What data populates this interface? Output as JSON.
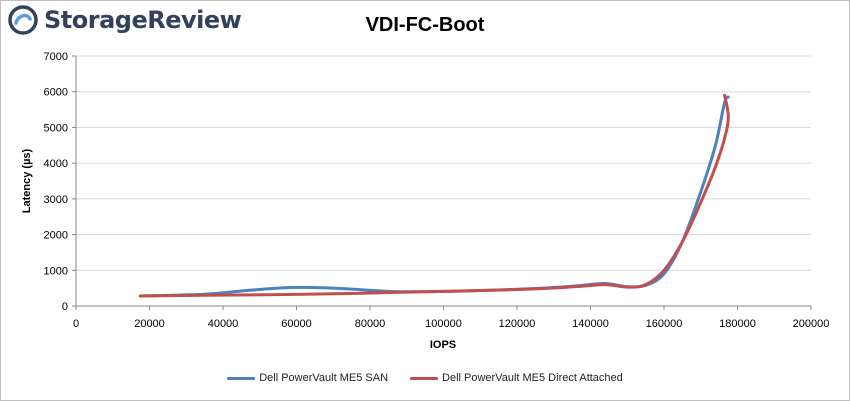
{
  "brand": {
    "name_part1": "Storage",
    "name_part2": "Review",
    "logo_icon": "storagereview-swirl-icon",
    "color": "#33415c"
  },
  "chart_data": {
    "type": "line",
    "title": "VDI-FC-Boot",
    "xlabel": "IOPS",
    "ylabel": "Latency (µs)",
    "xlim": [
      0,
      200000
    ],
    "ylim": [
      0,
      7000
    ],
    "xticks": [
      0,
      20000,
      40000,
      60000,
      80000,
      100000,
      120000,
      140000,
      160000,
      180000,
      200000
    ],
    "yticks": [
      0,
      1000,
      2000,
      3000,
      4000,
      5000,
      6000,
      7000
    ],
    "grid": true,
    "legend_position": "bottom",
    "series": [
      {
        "name": "Dell PowerVault ME5 SAN",
        "color": "#4f81bd",
        "points": [
          [
            17500,
            280
          ],
          [
            35000,
            330
          ],
          [
            45000,
            420
          ],
          [
            55000,
            500
          ],
          [
            62000,
            520
          ],
          [
            72000,
            490
          ],
          [
            88000,
            400
          ],
          [
            105000,
            420
          ],
          [
            125000,
            490
          ],
          [
            137000,
            570
          ],
          [
            144000,
            630
          ],
          [
            150000,
            540
          ],
          [
            155000,
            580
          ],
          [
            160000,
            900
          ],
          [
            165000,
            1800
          ],
          [
            170000,
            3200
          ],
          [
            174000,
            4500
          ],
          [
            176500,
            5700
          ],
          [
            177500,
            5850
          ]
        ]
      },
      {
        "name": "Dell PowerVault ME5 Direct Attached",
        "color": "#c0504d",
        "points": [
          [
            17500,
            280
          ],
          [
            35000,
            300
          ],
          [
            55000,
            320
          ],
          [
            75000,
            350
          ],
          [
            90000,
            390
          ],
          [
            105000,
            420
          ],
          [
            125000,
            480
          ],
          [
            137000,
            550
          ],
          [
            144000,
            600
          ],
          [
            150000,
            530
          ],
          [
            155000,
            600
          ],
          [
            160000,
            1000
          ],
          [
            165000,
            1800
          ],
          [
            170000,
            2900
          ],
          [
            174000,
            3900
          ],
          [
            176500,
            4700
          ],
          [
            177500,
            5300
          ],
          [
            176500,
            5900
          ]
        ]
      }
    ]
  }
}
